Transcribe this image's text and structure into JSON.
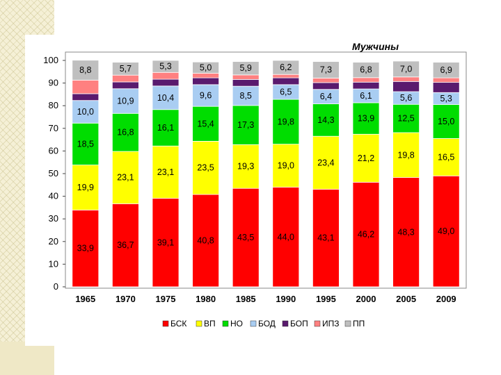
{
  "chart_data": {
    "type": "bar",
    "stacked": true,
    "title": "Мужчины",
    "categories": [
      "1965",
      "1970",
      "1975",
      "1980",
      "1985",
      "1990",
      "1995",
      "2000",
      "2005",
      "2009"
    ],
    "ylim": [
      0,
      100
    ],
    "yticks": [
      0,
      10,
      20,
      30,
      40,
      50,
      60,
      70,
      80,
      90,
      100
    ],
    "grid": false,
    "legend_position": "bottom",
    "series": [
      {
        "name": "БСК",
        "color": "#ff0000",
        "values": [
          33.9,
          36.7,
          39.1,
          40.8,
          43.5,
          44.0,
          43.1,
          46.2,
          48.3,
          49.0
        ],
        "labels": [
          "33,9",
          "36,7",
          "39,1",
          "40,8",
          "43,5",
          "44,0",
          "43,1",
          "46,2",
          "48,3",
          "49,0"
        ]
      },
      {
        "name": "ВП",
        "color": "#ffff00",
        "values": [
          19.9,
          23.1,
          23.1,
          23.5,
          19.3,
          19.0,
          23.4,
          21.2,
          19.8,
          16.5
        ],
        "labels": [
          "19,9",
          "23,1",
          "23,1",
          "23,5",
          "19,3",
          "19,0",
          "23,4",
          "21,2",
          "19,8",
          "16,5"
        ]
      },
      {
        "name": "НО",
        "color": "#00dd00",
        "values": [
          18.5,
          16.8,
          16.1,
          15.4,
          17.3,
          19.8,
          14.3,
          13.9,
          12.5,
          15.0
        ],
        "labels": [
          "18,5",
          "16,8",
          "16,1",
          "15,4",
          "17,3",
          "19,8",
          "14,3",
          "13,9",
          "12,5",
          "15,0"
        ]
      },
      {
        "name": "БОД",
        "color": "#a9cdf2",
        "values": [
          10.0,
          10.9,
          10.4,
          9.6,
          8.5,
          6.5,
          6.4,
          6.1,
          5.6,
          5.3
        ],
        "labels": [
          "10,0",
          "10,9",
          "10,4",
          "9,6",
          "8,5",
          "6,5",
          "6,4",
          "6,1",
          "5,6",
          "5,3"
        ]
      },
      {
        "name": "БОП",
        "color": "#5a1a6e",
        "values": [
          3.0,
          3.0,
          3.0,
          3.0,
          3.0,
          3.0,
          3.0,
          3.0,
          4.5,
          4.5
        ],
        "labels": []
      },
      {
        "name": "ИПЗ",
        "color": "#ff8080",
        "values": [
          6.0,
          3.0,
          3.0,
          2.0,
          2.0,
          1.5,
          2.0,
          2.0,
          2.0,
          2.0
        ],
        "labels": []
      },
      {
        "name": "ПП",
        "color": "#bfbfbf",
        "values": [
          8.8,
          5.7,
          5.3,
          5.0,
          5.9,
          6.2,
          7.3,
          6.8,
          7.0,
          6.9
        ],
        "labels": [
          "8,8",
          "5,7",
          "5,3",
          "5,0",
          "5,9",
          "6,2",
          "7,3",
          "6,8",
          "7,0",
          "6,9"
        ]
      }
    ]
  }
}
